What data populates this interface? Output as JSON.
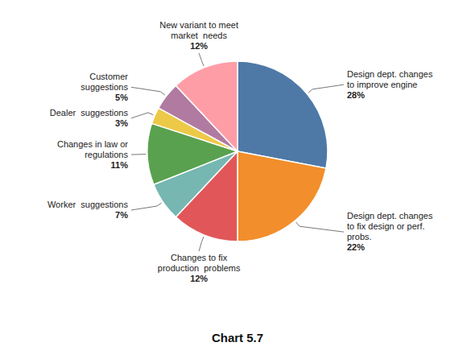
{
  "chart_data": {
    "type": "pie",
    "title": "Chart 5.7",
    "categories": [
      "Design dept. changes\nto improve engine",
      "Design dept. changes\nto fix design or perf.\nprobs.",
      "Changes to fix\nproduction  problems",
      "Worker  suggestions",
      "Changes in law or\nregulations",
      "Dealer  suggestions",
      "Customer\nsuggestions",
      "New variant to meet\nmarket  needs"
    ],
    "values": [
      28,
      22,
      12,
      7,
      11,
      3,
      5,
      12
    ],
    "value_labels": [
      "28%",
      "22%",
      "12%",
      "7%",
      "11%",
      "3%",
      "5%",
      "12%"
    ],
    "data_labels": true
  }
}
